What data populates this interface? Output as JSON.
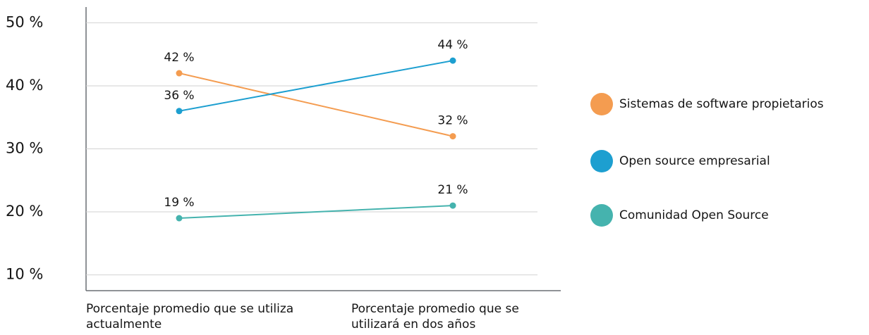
{
  "chart_data": {
    "type": "line",
    "categories": [
      "Porcentaje promedio que se utiliza actualmente",
      "Porcentaje promedio que se utilizará en dos años"
    ],
    "series": [
      {
        "name": "Sistemas de software propietarios",
        "color": "#f49c50",
        "values": [
          42,
          32
        ],
        "value_labels": [
          "42 %",
          "32 %"
        ]
      },
      {
        "name": "Open source empresarial",
        "color": "#1d9fd0",
        "values": [
          36,
          44
        ],
        "value_labels": [
          "36 %",
          "44 %"
        ]
      },
      {
        "name": "Comunidad Open Source",
        "color": "#45b3ae",
        "values": [
          19,
          21
        ],
        "value_labels": [
          "19 %",
          "21 %"
        ]
      }
    ],
    "ylim": [
      7.5,
      52.5
    ],
    "yticks": [
      {
        "value": 10,
        "label": "10 %"
      },
      {
        "value": 20,
        "label": "20 %"
      },
      {
        "value": 30,
        "label": "30 %"
      },
      {
        "value": 40,
        "label": "40 %"
      },
      {
        "value": 50,
        "label": "50 %"
      }
    ],
    "grid": true,
    "legend": "right"
  }
}
